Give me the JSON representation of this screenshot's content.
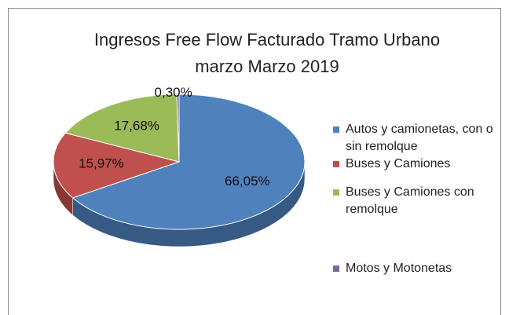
{
  "chart_data": {
    "type": "pie",
    "title": "Ingresos Free Flow Facturado Tramo Urbano marzo Marzo 2019",
    "categories": [
      "Autos y camionetas, con o sin remolque",
      "Buses y Camiones",
      "Buses y Camiones con remolque",
      "Motos y Motonetas"
    ],
    "values": [
      66.05,
      15.97,
      17.68,
      0.3
    ],
    "value_labels": [
      "66,05%",
      "15,97%",
      "17,68%",
      "0,30%"
    ],
    "colors": [
      "#4f81bd",
      "#c0504d",
      "#9bbb59",
      "#8064a2"
    ],
    "legend": "right"
  }
}
